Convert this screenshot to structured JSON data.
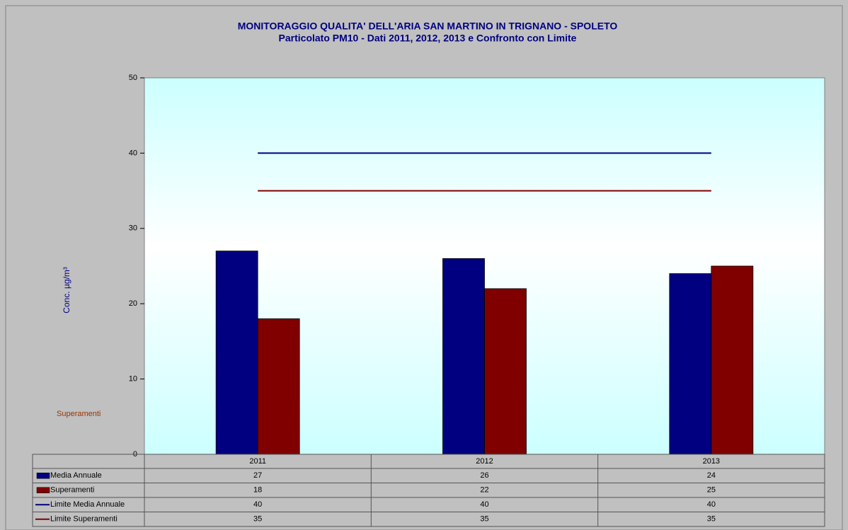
{
  "chart_data": {
    "type": "bar",
    "title": "MONITORAGGIO QUALITA' DELL'ARIA SAN MARTINO IN TRIGNANO - SPOLETO",
    "subtitle": "Particolato PM10 - Dati  2011, 2012, 2013 e Confronto con Limite",
    "y_label": "Conc. µg/m³",
    "annotation": "Superamenti",
    "categories": [
      "2011",
      "2012",
      "2013"
    ],
    "series": [
      {
        "name": "Media Annuale",
        "color": "#000080",
        "type": "bar",
        "values": [
          27,
          26,
          24
        ]
      },
      {
        "name": "Superamenti",
        "color": "#800000",
        "type": "bar",
        "values": [
          18,
          22,
          25
        ]
      },
      {
        "name": "Limite Media Annuale",
        "color": "#000080",
        "type": "line",
        "values": [
          40,
          40,
          40
        ]
      },
      {
        "name": "Limite Superamenti",
        "color": "#800000",
        "type": "line",
        "values": [
          35,
          35,
          35
        ]
      }
    ],
    "ylim": [
      0,
      50
    ],
    "yticks": [
      0,
      10,
      20,
      30,
      40,
      50
    ],
    "grid": false
  }
}
